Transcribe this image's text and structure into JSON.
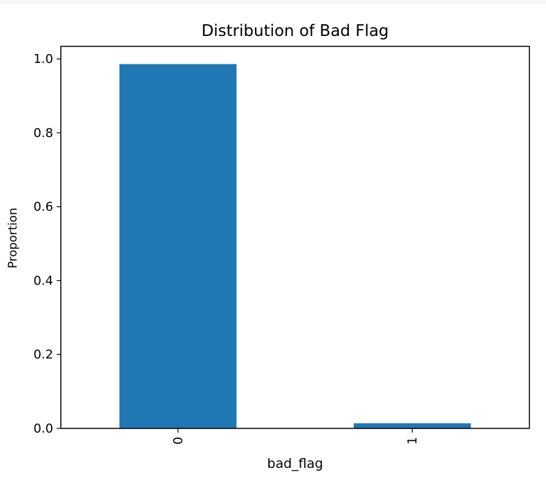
{
  "chart_data": {
    "type": "bar",
    "title": "Distribution of Bad Flag",
    "xlabel": "bad_flag",
    "ylabel": "Proportion",
    "categories": [
      "0",
      "1"
    ],
    "values": [
      0.986,
      0.014
    ],
    "ylim": [
      0,
      1.034
    ],
    "yticks": [
      0.0,
      0.2,
      0.4,
      0.6,
      0.8,
      1.0
    ],
    "ytick_labels": [
      "0.0",
      "0.2",
      "0.4",
      "0.6",
      "0.8",
      "1.0"
    ],
    "xtick_rotation": "vertical",
    "grid": false,
    "legend": "none",
    "colors": {
      "bar": "#1f77b4",
      "axes": "#000000",
      "background": "#ffffff"
    }
  }
}
